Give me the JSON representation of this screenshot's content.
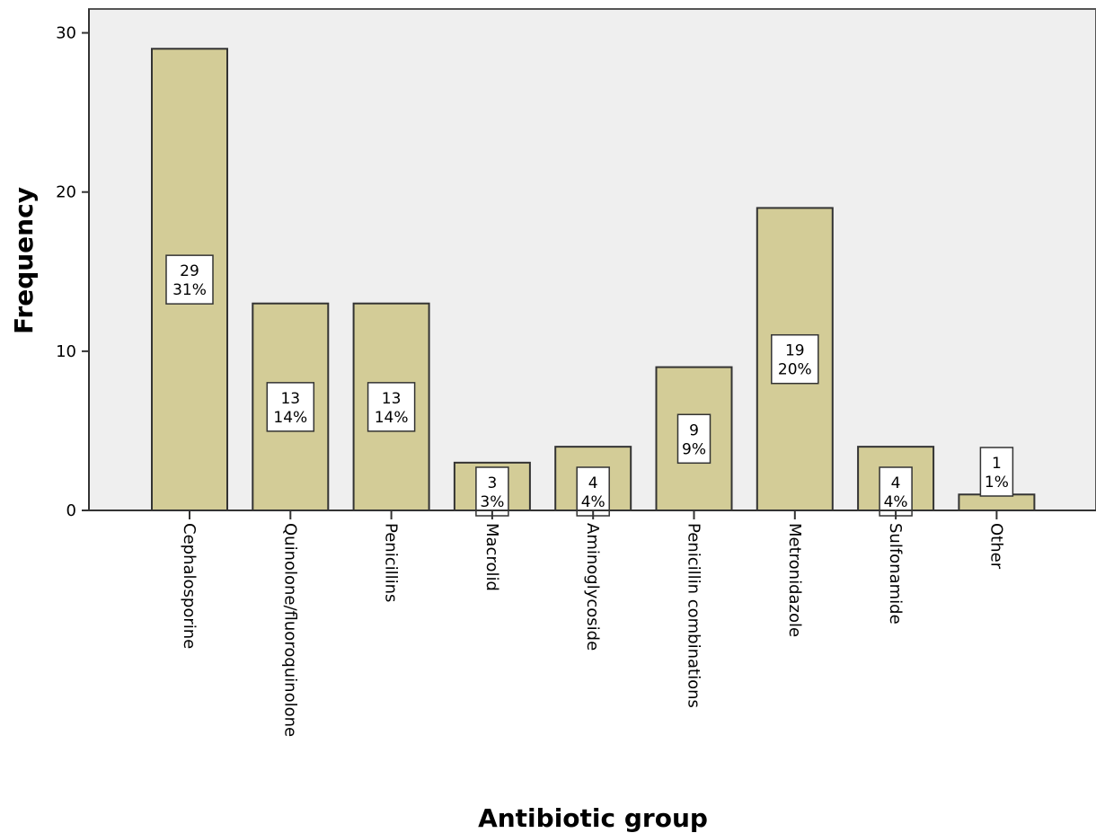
{
  "chart_data": {
    "type": "bar",
    "xlabel": "Antibiotic group",
    "ylabel": "Frequency",
    "categories": [
      "Cephalosporine",
      "Quinolone/fluoroquinolone",
      "Penicillins",
      "Macrolid",
      "Aminoglycoside",
      "Penicillin combinations",
      "Metronidazole",
      "Sulfonamide",
      "Other"
    ],
    "values": [
      29,
      13,
      13,
      3,
      4,
      9,
      19,
      4,
      1
    ],
    "percent_labels": [
      "31%",
      "14%",
      "14%",
      "3%",
      "4%",
      "9%",
      "20%",
      "4%",
      "1%"
    ],
    "ylim": [
      0,
      31.5
    ],
    "yticks": [
      0,
      10,
      20,
      30
    ],
    "grid": false,
    "colors": {
      "bar_fill": "#d3cc97",
      "bar_stroke": "#333333",
      "plot_background": "#efefef"
    }
  }
}
